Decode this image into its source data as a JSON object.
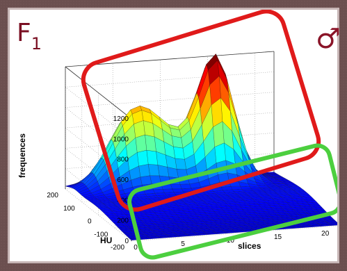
{
  "panel_label": {
    "main": "F",
    "sub": "1"
  },
  "symbol": "♂",
  "colors": {
    "label": "#7a0f22",
    "red_box": "#e01a1a",
    "green_box": "#4ccf3f"
  },
  "chart_data": {
    "type": "surface3d",
    "zlabel": "frequences",
    "xlabel": "slices",
    "ylabel": "HU",
    "z_ticks": [
      0,
      200,
      400,
      600,
      800,
      1000,
      1200
    ],
    "x_ticks": [
      0,
      5,
      10,
      15,
      20
    ],
    "y_ticks": [
      -200,
      -100,
      0,
      100,
      200
    ],
    "zlim": [
      0,
      1200
    ],
    "xlim": [
      0,
      22
    ],
    "ylim": [
      -200,
      200
    ],
    "grid": true,
    "colormap": "jet",
    "peak": {
      "slice": 15,
      "HU": 150,
      "frequence": 1200
    },
    "annotations": [
      {
        "shape": "rounded-rectangle",
        "color": "#e01a1a",
        "marks": "high-frequency ridge"
      },
      {
        "shape": "rounded-rectangle",
        "color": "#4ccf3f",
        "marks": "low flat region"
      }
    ]
  }
}
